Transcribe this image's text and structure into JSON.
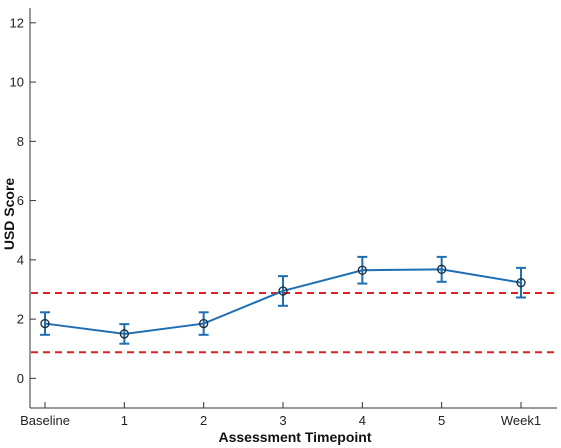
{
  "chart_data": {
    "type": "line",
    "categories": [
      "Baseline",
      "1",
      "2",
      "3",
      "4",
      "5",
      "Week1"
    ],
    "series": [
      {
        "values": [
          1.85,
          1.5,
          1.85,
          2.95,
          3.65,
          3.68,
          3.23
        ],
        "error": [
          0.38,
          0.33,
          0.38,
          0.5,
          0.45,
          0.42,
          0.5
        ],
        "color": "#1f6fb2",
        "marker": "circle"
      }
    ],
    "reference_lines": [
      {
        "y": 2.88,
        "color": "#e02020",
        "style": "dashed"
      },
      {
        "y": 0.88,
        "color": "#e02020",
        "style": "dashed"
      }
    ],
    "xlabel": "Assessment Timepoint",
    "ylabel": "USD Score",
    "ylim": [
      -1,
      12.5
    ],
    "yticks": [
      0,
      2,
      4,
      6,
      8,
      10,
      12
    ],
    "grid": false
  }
}
